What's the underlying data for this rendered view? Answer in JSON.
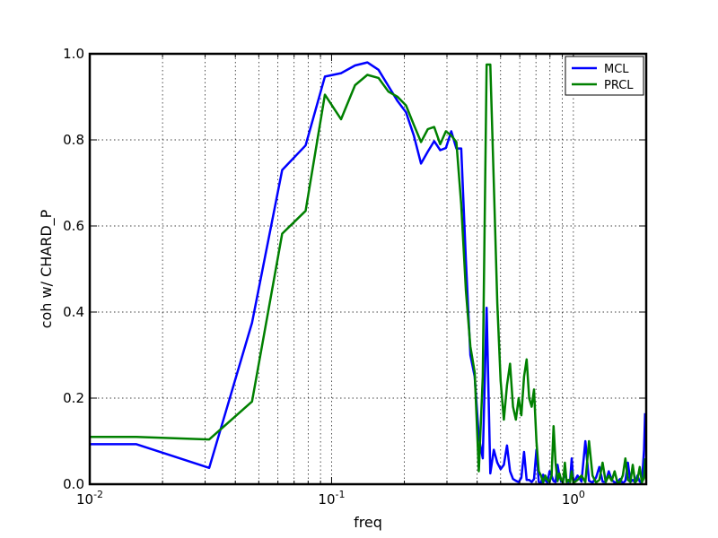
{
  "chart_data": {
    "type": "line",
    "xlabel": "freq",
    "ylabel": "coh w/ CHARD_P",
    "xscale": "log",
    "xlim": [
      0.01,
      2.0
    ],
    "ylim": [
      0.0,
      1.0
    ],
    "grid": true,
    "legend_position": "top-right",
    "x_tick_labels": [
      {
        "value": 0.01,
        "base": "10",
        "exp": "-2"
      },
      {
        "value": 0.1,
        "base": "10",
        "exp": "-1"
      },
      {
        "value": 1.0,
        "base": "10",
        "exp": "0"
      }
    ],
    "y_tick_labels": [
      "0.0",
      "0.2",
      "0.4",
      "0.6",
      "0.8",
      "1.0"
    ],
    "y_tick_values": [
      0.0,
      0.2,
      0.4,
      0.6,
      0.8,
      1.0
    ],
    "series": [
      {
        "name": "MCL",
        "color": "#0000ff",
        "x": [
          0.01,
          0.0156,
          0.0312,
          0.0469,
          0.0625,
          0.0781,
          0.0938,
          0.1094,
          0.125,
          0.1406,
          0.1563,
          0.1719,
          0.1875,
          0.2031,
          0.2188,
          0.2344,
          0.25,
          0.2656,
          0.2813,
          0.2969,
          0.3125,
          0.3281,
          0.3438,
          0.3594,
          0.375,
          0.3906,
          0.4063,
          0.4219,
          0.4375,
          0.4531,
          0.4688,
          0.4844,
          0.5,
          0.5156,
          0.5313,
          0.5469,
          0.5625,
          0.5781,
          0.5938,
          0.6094,
          0.625,
          0.6406,
          0.6563,
          0.6719,
          0.6875,
          0.7031,
          0.7188,
          0.7344,
          0.75,
          0.7656,
          0.7813,
          0.7969,
          0.8125,
          0.8281,
          0.8438,
          0.8594,
          0.875,
          0.8906,
          0.9063,
          0.9219,
          0.9375,
          0.9531,
          0.9688,
          0.9844,
          1.0,
          1.04,
          1.08,
          1.12,
          1.16,
          1.2,
          1.24,
          1.28,
          1.32,
          1.36,
          1.4,
          1.44,
          1.48,
          1.52,
          1.56,
          1.6,
          1.64,
          1.68,
          1.72,
          1.76,
          1.8,
          1.84,
          1.88,
          1.92,
          1.96,
          1.98
        ],
        "y": [
          0.093,
          0.093,
          0.038,
          0.375,
          0.73,
          0.787,
          0.947,
          0.955,
          0.973,
          0.98,
          0.963,
          0.925,
          0.89,
          0.864,
          0.81,
          0.745,
          0.773,
          0.797,
          0.776,
          0.781,
          0.82,
          0.78,
          0.78,
          0.52,
          0.3,
          0.25,
          0.11,
          0.06,
          0.41,
          0.025,
          0.08,
          0.05,
          0.035,
          0.045,
          0.09,
          0.03,
          0.012,
          0.008,
          0.005,
          0.015,
          0.075,
          0.01,
          0.01,
          0.005,
          0.012,
          0.08,
          0.005,
          0.003,
          0.022,
          0.009,
          0.004,
          0.03,
          0.02,
          0.007,
          0.005,
          0.045,
          0.02,
          0.006,
          0.01,
          0.03,
          0.006,
          0.005,
          0.008,
          0.06,
          0.003,
          0.02,
          0.006,
          0.1,
          0.008,
          0.004,
          0.015,
          0.04,
          0.006,
          0.005,
          0.03,
          0.01,
          0.004,
          0.005,
          0.012,
          0.002,
          0.008,
          0.05,
          0.005,
          0.01,
          0.004,
          0.02,
          0.006,
          0.003,
          0.08,
          0.165
        ]
      },
      {
        "name": "PRCL",
        "color": "#008000",
        "x": [
          0.01,
          0.0156,
          0.0312,
          0.0469,
          0.0625,
          0.0781,
          0.0938,
          0.1094,
          0.125,
          0.1406,
          0.1563,
          0.1719,
          0.1875,
          0.2031,
          0.2188,
          0.2344,
          0.25,
          0.2656,
          0.2813,
          0.2969,
          0.3125,
          0.3281,
          0.3438,
          0.3594,
          0.375,
          0.3906,
          0.4063,
          0.4219,
          0.4375,
          0.4531,
          0.4688,
          0.4844,
          0.5,
          0.5156,
          0.5313,
          0.5469,
          0.5625,
          0.5781,
          0.5938,
          0.6094,
          0.625,
          0.6406,
          0.6563,
          0.6719,
          0.6875,
          0.7031,
          0.7188,
          0.7344,
          0.75,
          0.7656,
          0.7813,
          0.7969,
          0.8125,
          0.8281,
          0.8438,
          0.8594,
          0.875,
          0.8906,
          0.9063,
          0.9219,
          0.9375,
          0.9531,
          0.9688,
          0.9844,
          1.0,
          1.04,
          1.08,
          1.12,
          1.16,
          1.2,
          1.24,
          1.28,
          1.32,
          1.36,
          1.4,
          1.44,
          1.48,
          1.52,
          1.56,
          1.6,
          1.64,
          1.68,
          1.72,
          1.76,
          1.8,
          1.84,
          1.88,
          1.92,
          1.96,
          1.98
        ],
        "y": [
          0.11,
          0.11,
          0.104,
          0.192,
          0.582,
          0.635,
          0.905,
          0.848,
          0.927,
          0.951,
          0.944,
          0.912,
          0.9,
          0.88,
          0.835,
          0.795,
          0.825,
          0.83,
          0.79,
          0.82,
          0.81,
          0.795,
          0.65,
          0.45,
          0.32,
          0.26,
          0.03,
          0.25,
          0.975,
          0.975,
          0.7,
          0.42,
          0.24,
          0.15,
          0.23,
          0.28,
          0.18,
          0.15,
          0.2,
          0.16,
          0.25,
          0.29,
          0.2,
          0.18,
          0.22,
          0.1,
          0.03,
          0.02,
          0.004,
          0.02,
          0.01,
          0.005,
          0.02,
          0.135,
          0.05,
          0.007,
          0.025,
          0.01,
          0.004,
          0.05,
          0.005,
          0.01,
          0.005,
          0.03,
          0.003,
          0.01,
          0.02,
          0.005,
          0.1,
          0.02,
          0.004,
          0.01,
          0.05,
          0.005,
          0.02,
          0.008,
          0.03,
          0.004,
          0.005,
          0.02,
          0.06,
          0.01,
          0.005,
          0.045,
          0.004,
          0.01,
          0.04,
          0.004,
          0.015,
          0.06
        ]
      }
    ]
  }
}
